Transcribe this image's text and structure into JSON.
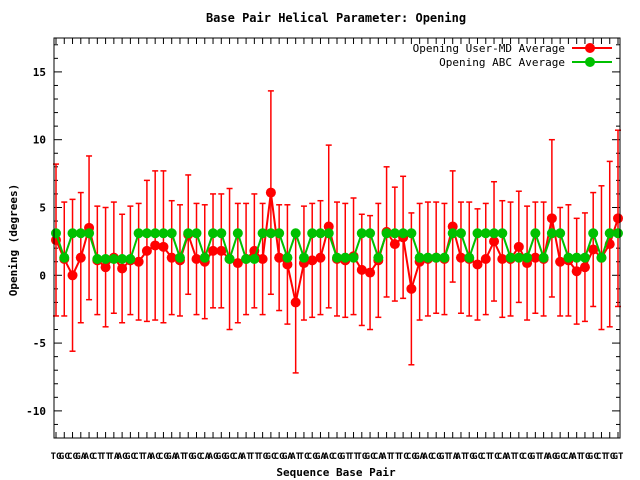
{
  "chart_data": {
    "type": "line",
    "title": "Base Pair Helical Parameter: Opening",
    "xlabel": "Sequence Base Pair",
    "ylabel": "Opening (degrees)",
    "ylim": [
      -12,
      17.5
    ],
    "yticks": [
      -10,
      -5,
      0,
      5,
      10,
      15
    ],
    "legend_position": "top-right",
    "x_tick_labels": [
      "TG",
      "GC",
      "CG",
      "GA",
      "AC",
      "CT",
      "TT",
      "TA",
      "AG",
      "GC",
      "CT",
      "TA",
      "AC",
      "CG",
      "GA",
      "AT",
      "TG",
      "GC",
      "CA",
      "AG",
      "GG",
      "GC",
      "CA",
      "AT",
      "TT",
      "TG",
      "GC",
      "CG",
      "GA",
      "AT",
      "TC",
      "CG",
      "GA",
      "AC",
      "CG",
      "GT",
      "TT",
      "TG",
      "GC",
      "CA",
      "AT",
      "TT",
      "TC",
      "CG",
      "GA",
      "AC",
      "CG",
      "GT",
      "TA",
      "AT",
      "TG",
      "GC",
      "CT",
      "TC",
      "CA",
      "AT",
      "TC",
      "CG",
      "GT",
      "TA",
      "AG",
      "GC",
      "CA",
      "AT",
      "TG",
      "GC",
      "CT",
      "TG",
      "GT"
    ],
    "grid": false,
    "series": [
      {
        "name": "Opening User-MD Average",
        "color": "#ff0000",
        "marker": "circle",
        "values": [
          2.6,
          1.2,
          0.0,
          1.3,
          3.5,
          1.1,
          0.6,
          1.3,
          0.5,
          1.1,
          1.0,
          1.8,
          2.2,
          2.1,
          1.3,
          1.1,
          3.0,
          1.2,
          1.0,
          1.8,
          1.8,
          1.2,
          0.9,
          1.2,
          1.8,
          1.2,
          6.1,
          1.3,
          0.8,
          -2.0,
          0.9,
          1.1,
          1.3,
          3.6,
          1.2,
          1.1,
          1.4,
          0.4,
          0.2,
          1.1,
          3.2,
          2.3,
          2.8,
          -1.0,
          1.0,
          1.2,
          1.3,
          1.2,
          3.6,
          1.3,
          1.2,
          0.8,
          1.2,
          2.5,
          1.2,
          1.2,
          2.1,
          0.9,
          1.3,
          1.2,
          4.2,
          1.0,
          1.1,
          0.3,
          0.6,
          1.9,
          1.3,
          2.3,
          4.2
        ],
        "errors": [
          5.6,
          4.2,
          5.6,
          4.8,
          5.3,
          4.0,
          4.4,
          4.1,
          4.0,
          4.0,
          4.3,
          5.2,
          5.5,
          5.6,
          4.2,
          4.1,
          4.4,
          4.1,
          4.2,
          4.2,
          4.2,
          5.2,
          4.4,
          4.1,
          4.2,
          4.1,
          7.5,
          3.9,
          4.4,
          5.2,
          4.2,
          4.2,
          4.2,
          6.0,
          4.2,
          4.2,
          4.3,
          4.1,
          4.2,
          4.2,
          4.8,
          4.2,
          4.5,
          5.6,
          4.3,
          4.2,
          4.1,
          4.1,
          4.1,
          4.1,
          4.2,
          4.1,
          4.1,
          4.4,
          4.3,
          4.2,
          4.1,
          4.2,
          4.1,
          4.2,
          5.8,
          4.0,
          4.1,
          3.9,
          4.0,
          4.2,
          5.3,
          6.1,
          6.5
        ]
      },
      {
        "name": "Opening ABC Average",
        "color": "#00c000",
        "marker": "circle",
        "values": [
          3.1,
          1.3,
          3.1,
          3.1,
          3.1,
          1.2,
          1.2,
          1.2,
          1.2,
          1.2,
          3.1,
          3.1,
          3.1,
          3.1,
          3.1,
          1.3,
          3.1,
          3.1,
          1.3,
          3.1,
          3.1,
          1.2,
          3.1,
          1.2,
          1.2,
          3.1,
          3.1,
          3.1,
          1.3,
          3.1,
          1.3,
          3.1,
          3.1,
          3.1,
          1.3,
          1.3,
          1.3,
          3.1,
          3.1,
          1.3,
          3.1,
          3.1,
          3.1,
          3.1,
          1.3,
          1.3,
          1.3,
          1.3,
          3.1,
          3.1,
          1.3,
          3.1,
          3.1,
          3.1,
          3.1,
          1.3,
          1.3,
          1.3,
          3.1,
          1.3,
          3.1,
          3.1,
          1.3,
          1.3,
          1.3,
          3.1,
          1.3,
          3.1,
          3.1
        ]
      }
    ]
  }
}
